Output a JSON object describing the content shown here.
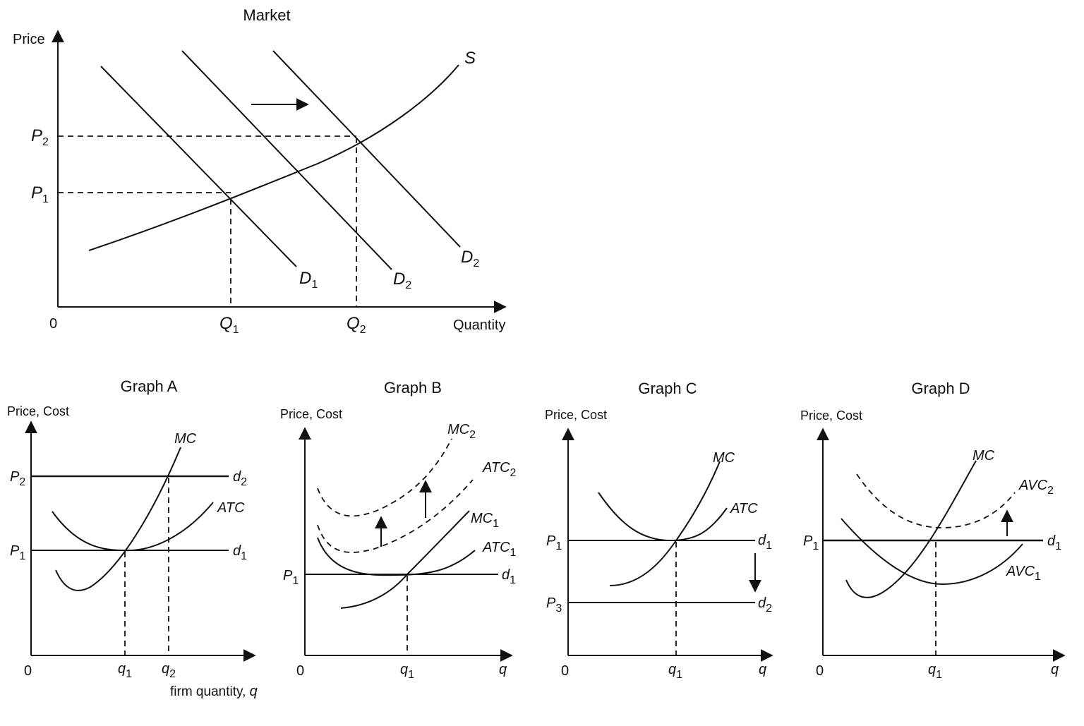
{
  "market": {
    "title": "Market",
    "y_axis": "Price",
    "x_axis": "Quantity",
    "origin": "0",
    "price_labels": [
      {
        "base": "P",
        "sub": "2"
      },
      {
        "base": "P",
        "sub": "1"
      }
    ],
    "quantity_labels": [
      {
        "base": "Q",
        "sub": "1"
      },
      {
        "base": "Q",
        "sub": "2"
      }
    ],
    "curves": [
      {
        "base": "S",
        "sub": ""
      },
      {
        "base": "D",
        "sub": "1"
      },
      {
        "base": "D",
        "sub": "2"
      },
      {
        "base": "D",
        "sub": "2"
      }
    ]
  },
  "graph_a": {
    "title": "Graph A",
    "y_axis": "Price, Cost",
    "x_axis": "firm quantity, ",
    "x_axis_var": "q",
    "origin": "0",
    "price_labels": [
      {
        "base": "P",
        "sub": "2"
      },
      {
        "base": "P",
        "sub": "1"
      }
    ],
    "quantity_labels": [
      {
        "base": "q",
        "sub": "1"
      },
      {
        "base": "q",
        "sub": "2"
      }
    ],
    "curves": {
      "mc": "MC",
      "atc": "ATC",
      "d2": {
        "base": "d",
        "sub": "2"
      },
      "d1": {
        "base": "d",
        "sub": "1"
      }
    }
  },
  "graph_b": {
    "title": "Graph B",
    "y_axis": "Price, Cost",
    "x_axis_var": "q",
    "origin": "0",
    "price_labels": [
      {
        "base": "P",
        "sub": "1"
      }
    ],
    "quantity_labels": [
      {
        "base": "q",
        "sub": "1"
      }
    ],
    "curves": {
      "mc2": {
        "base": "MC",
        "sub": "2"
      },
      "atc2": {
        "base": "ATC",
        "sub": "2"
      },
      "mc1": {
        "base": "MC",
        "sub": "1"
      },
      "atc1": {
        "base": "ATC",
        "sub": "1"
      },
      "d1": {
        "base": "d",
        "sub": "1"
      }
    }
  },
  "graph_c": {
    "title": "Graph C",
    "y_axis": "Price, Cost",
    "x_axis_var": "q",
    "origin": "0",
    "price_labels": [
      {
        "base": "P",
        "sub": "1"
      },
      {
        "base": "P",
        "sub": "3"
      }
    ],
    "quantity_labels": [
      {
        "base": "q",
        "sub": "1"
      }
    ],
    "curves": {
      "mc": "MC",
      "atc": "ATC",
      "d1": {
        "base": "d",
        "sub": "1"
      },
      "d2": {
        "base": "d",
        "sub": "2"
      }
    }
  },
  "graph_d": {
    "title": "Graph D",
    "y_axis": "Price, Cost",
    "x_axis_var": "q",
    "origin": "0",
    "price_labels": [
      {
        "base": "P",
        "sub": "1"
      }
    ],
    "quantity_labels": [
      {
        "base": "q",
        "sub": "1"
      }
    ],
    "curves": {
      "mc": "MC",
      "avc2": {
        "base": "AVC",
        "sub": "2"
      },
      "avc1": {
        "base": "AVC",
        "sub": "1"
      },
      "d1": {
        "base": "d",
        "sub": "1"
      }
    }
  }
}
